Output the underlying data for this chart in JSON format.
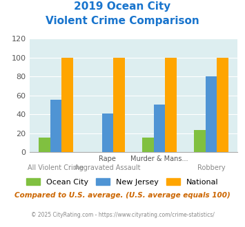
{
  "title_line1": "2019 Ocean City",
  "title_line2": "Violent Crime Comparison",
  "top_labels": [
    "",
    "Rape",
    "Murder & Mans...",
    ""
  ],
  "bottom_labels": [
    "All Violent Crime",
    "Aggravated Assault",
    "",
    "Robbery"
  ],
  "ocean_city": [
    15,
    0,
    15,
    23
  ],
  "new_jersey": [
    55,
    41,
    50,
    80
  ],
  "national": [
    100,
    100,
    100,
    100
  ],
  "colors": {
    "ocean_city": "#80c040",
    "new_jersey": "#4f94d4",
    "national": "#ffa500"
  },
  "ylim": [
    0,
    120
  ],
  "yticks": [
    0,
    20,
    40,
    60,
    80,
    100,
    120
  ],
  "plot_bg": "#ddeef0",
  "title_color": "#1874cd",
  "footer_text": "Compared to U.S. average. (U.S. average equals 100)",
  "footer_color": "#cc6600",
  "copyright_text": "© 2025 CityRating.com - https://www.cityrating.com/crime-statistics/",
  "copyright_color": "#888888",
  "legend_labels": [
    "Ocean City",
    "New Jersey",
    "National"
  ],
  "bar_width": 0.22,
  "label_top_color": "#555555",
  "label_bot_color": "#888888"
}
